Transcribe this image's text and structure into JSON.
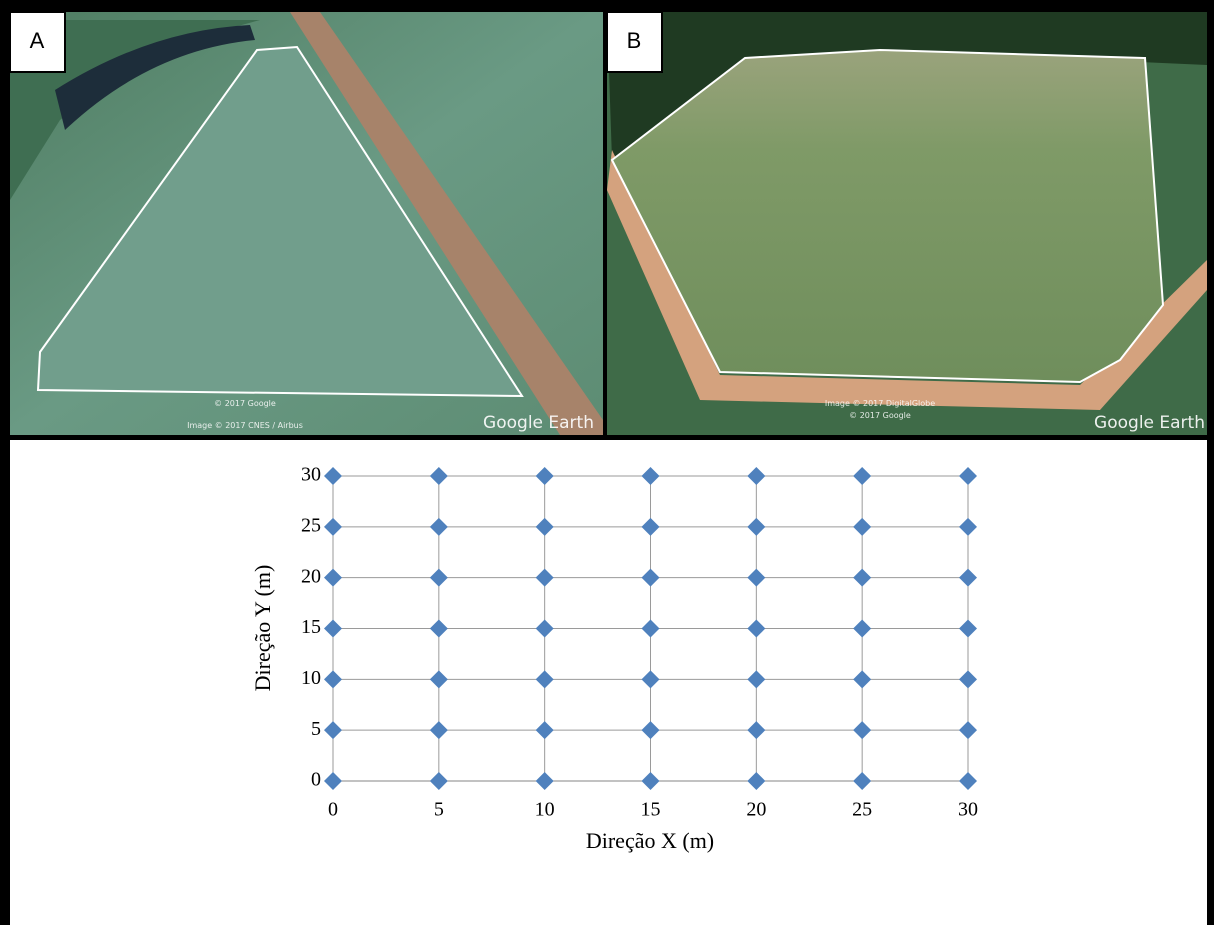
{
  "panels": [
    {
      "label": "A",
      "watermark": "Google Earth",
      "credits": [
        "© 2017 Google",
        "Image © 2017 CNES / Airbus"
      ]
    },
    {
      "label": "B",
      "watermark": "Google Earth",
      "credits": [
        "Image © 2017 DigitalGlobe",
        "© 2017 Google"
      ]
    }
  ],
  "chart_data": {
    "type": "scatter",
    "xlabel": "Direção X (m)",
    "ylabel": "Direção Y (m)",
    "series": [
      {
        "color": "#4f81bd",
        "x": [
          0,
          0,
          0,
          0,
          0,
          0,
          0,
          5,
          5,
          5,
          5,
          5,
          5,
          5,
          10,
          10,
          10,
          10,
          10,
          10,
          10,
          15,
          15,
          15,
          15,
          15,
          15,
          15,
          20,
          20,
          20,
          20,
          20,
          20,
          20,
          25,
          25,
          25,
          25,
          25,
          25,
          25,
          30,
          30,
          30,
          30,
          30,
          30,
          30
        ],
        "values": [
          0,
          5,
          10,
          15,
          20,
          25,
          30,
          0,
          5,
          10,
          15,
          20,
          25,
          30,
          0,
          5,
          10,
          15,
          20,
          25,
          30,
          0,
          5,
          10,
          15,
          20,
          25,
          30,
          0,
          5,
          10,
          15,
          20,
          25,
          30,
          0,
          5,
          10,
          15,
          20,
          25,
          30,
          0,
          5,
          10,
          15,
          20,
          25,
          30
        ]
      }
    ],
    "xlim": [
      0,
      30
    ],
    "ylim": [
      0,
      30
    ],
    "xticks": [
      0,
      5,
      10,
      15,
      20,
      25,
      30
    ],
    "yticks": [
      0,
      5,
      10,
      15,
      20,
      25,
      30
    ],
    "grid": true
  }
}
